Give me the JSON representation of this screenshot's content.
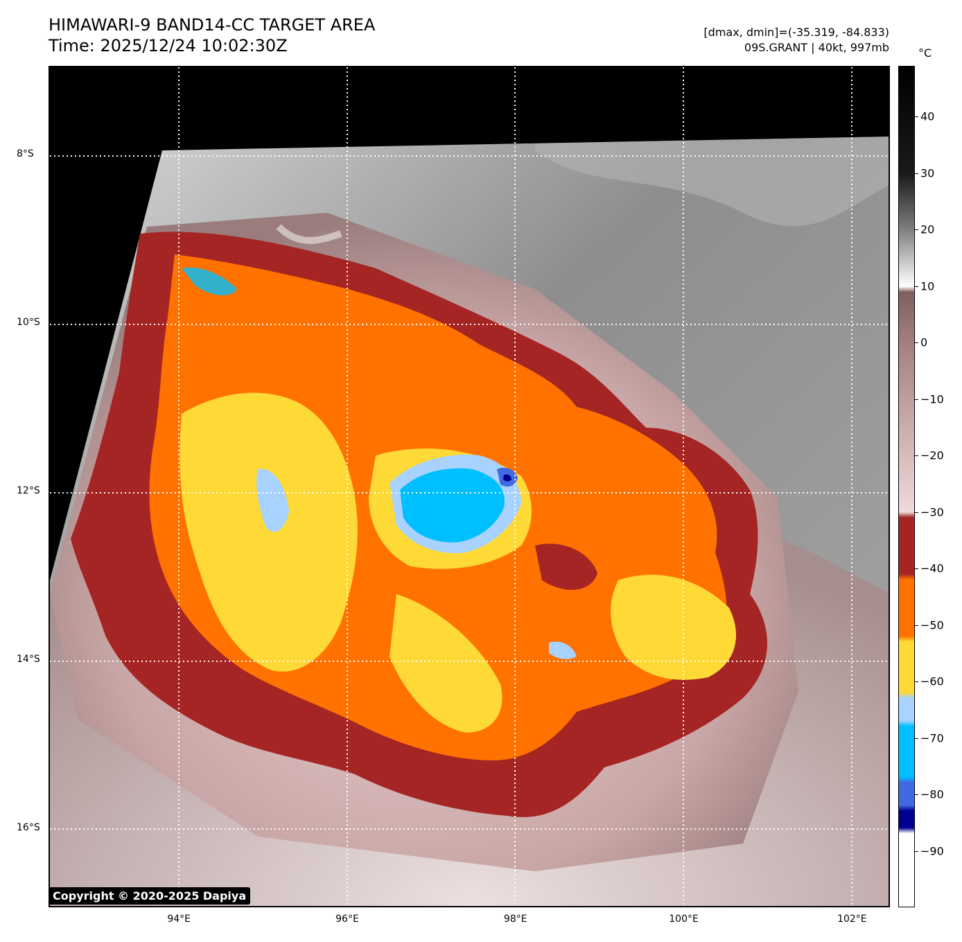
{
  "header": {
    "title_line1": "HIMAWARI-9 BAND14-CC TARGET AREA",
    "title_line2": "Time: 2025/12/24 10:02:30Z",
    "dmax_dmin": "[dmax, dmin]=(-35.319, -84.833)",
    "storm_info": "09S.GRANT | 40kt, 997mb"
  },
  "colorbar": {
    "unit": "°C",
    "ticks": [
      "40",
      "30",
      "20",
      "10",
      "0",
      "−10",
      "−20",
      "−30",
      "−40",
      "−50",
      "−60",
      "−70",
      "−80",
      "−90"
    ],
    "range": [
      -100,
      49
    ]
  },
  "map": {
    "lat_labels": [
      "8°S",
      "10°S",
      "12°S",
      "14°S",
      "16°S"
    ],
    "lon_labels": [
      "94°E",
      "96°E",
      "98°E",
      "100°E",
      "102°E"
    ],
    "lat_values": [
      -8,
      -10,
      -12,
      -14,
      -16
    ],
    "lon_values": [
      94,
      96,
      98,
      100,
      102
    ],
    "lon_range": [
      92.45,
      102.45
    ],
    "lat_range": [
      -6.95,
      -16.95
    ],
    "copyright": "Copyright © 2020-2025 Dapiya"
  },
  "colors": {
    "blue_dark": "#000090",
    "blue": "#4169e1",
    "cyan": "#00bfff",
    "light_blue": "#a8d2ff",
    "yellow": "#ffd935",
    "orange": "#ff7200",
    "dark_red": "#a52424"
  }
}
